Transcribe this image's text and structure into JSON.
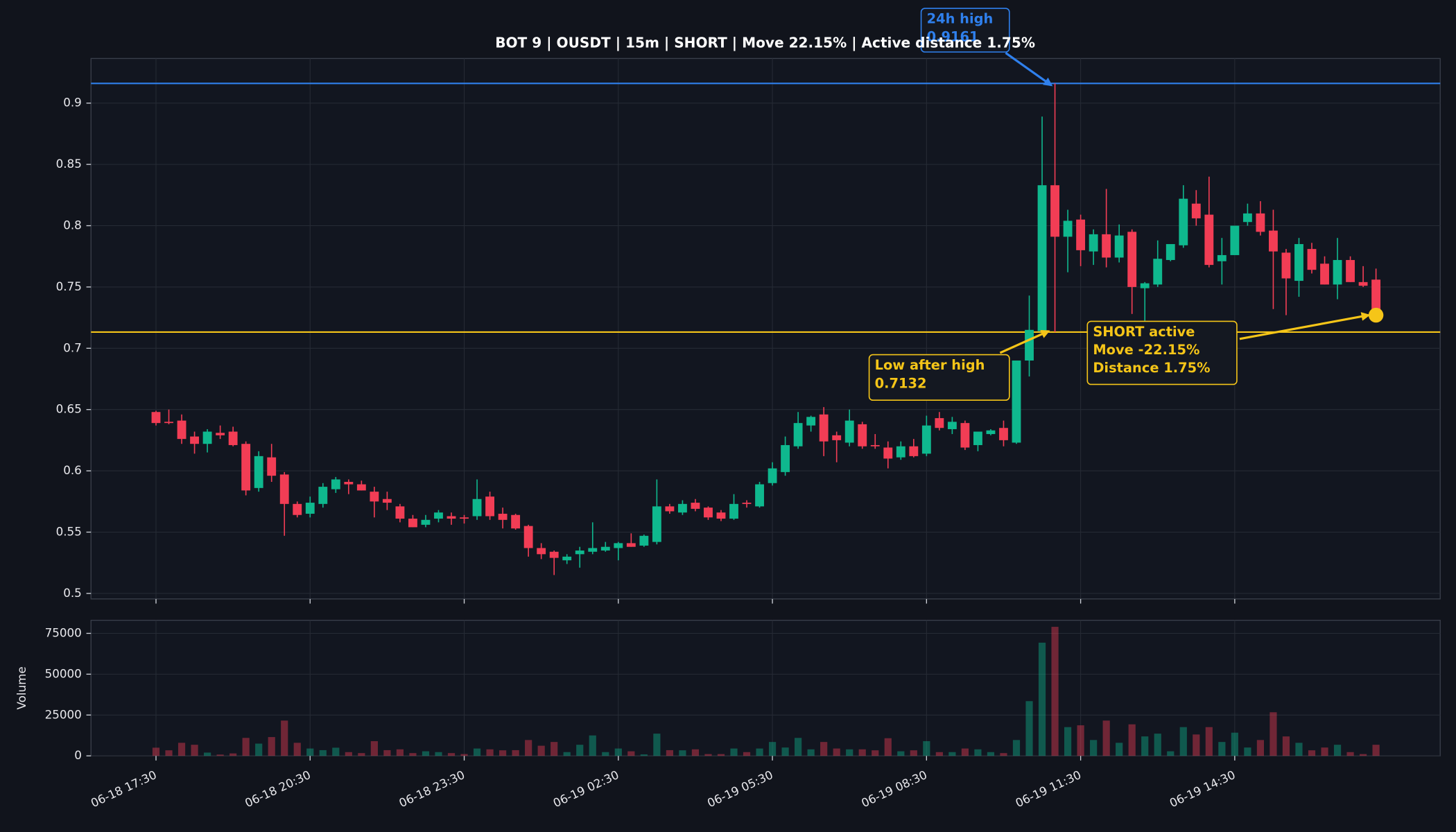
{
  "chart_data": {
    "type": "candlestick",
    "title": "BOT 9 | OUSDT | 15m | SHORT | Move 22.15% | Active distance 1.75%",
    "categories": [
      "06-18 17:30",
      null,
      null,
      null,
      null,
      null,
      null,
      null,
      null,
      null,
      null,
      null,
      "06-18 20:30",
      null,
      null,
      null,
      null,
      null,
      null,
      null,
      null,
      null,
      null,
      null,
      "06-18 23:30",
      null,
      null,
      null,
      null,
      null,
      null,
      null,
      null,
      null,
      null,
      null,
      "06-19 02:30",
      null,
      null,
      null,
      null,
      null,
      null,
      null,
      null,
      null,
      null,
      null,
      "06-19 05:30",
      null,
      null,
      null,
      null,
      null,
      null,
      null,
      null,
      null,
      null,
      null,
      "06-19 08:30",
      null,
      null,
      null,
      null,
      null,
      null,
      null,
      null,
      null,
      null,
      null,
      "06-19 11:30",
      null,
      null,
      null,
      null,
      null,
      null,
      null,
      null,
      null,
      null,
      null,
      "06-19 14:30",
      null,
      null,
      null,
      null,
      null,
      null,
      null,
      null,
      null,
      null,
      null
    ],
    "open": [
      0.648,
      0.64,
      0.641,
      0.628,
      0.622,
      0.631,
      0.632,
      0.622,
      0.586,
      0.611,
      0.597,
      0.573,
      0.565,
      0.573,
      0.585,
      0.591,
      0.589,
      0.583,
      0.577,
      0.571,
      0.561,
      0.556,
      0.561,
      0.563,
      0.562,
      0.563,
      0.579,
      0.565,
      0.564,
      0.555,
      0.537,
      0.534,
      0.527,
      0.532,
      0.534,
      0.535,
      0.537,
      0.541,
      0.539,
      0.542,
      0.571,
      0.566,
      0.574,
      0.57,
      0.566,
      0.561,
      0.574,
      0.571,
      0.59,
      0.599,
      0.62,
      0.637,
      0.646,
      0.629,
      0.623,
      0.638,
      0.621,
      0.619,
      0.611,
      0.62,
      0.614,
      0.643,
      0.634,
      0.639,
      0.621,
      0.63,
      0.635,
      0.623,
      0.69,
      0.714,
      0.833,
      0.791,
      0.805,
      0.779,
      0.793,
      0.774,
      0.795,
      0.749,
      0.752,
      0.772,
      0.784,
      0.818,
      0.809,
      0.771,
      0.776,
      0.803,
      0.81,
      0.796,
      0.778,
      0.755,
      0.781,
      0.769,
      0.752,
      0.772,
      0.754,
      0.756
    ],
    "high": [
      0.649,
      0.65,
      0.646,
      0.632,
      0.634,
      0.637,
      0.636,
      0.624,
      0.616,
      0.622,
      0.599,
      0.575,
      0.579,
      0.59,
      0.595,
      0.593,
      0.592,
      0.587,
      0.583,
      0.573,
      0.564,
      0.564,
      0.568,
      0.566,
      0.564,
      0.593,
      0.583,
      0.57,
      0.565,
      0.556,
      0.541,
      0.535,
      0.532,
      0.538,
      0.558,
      0.542,
      0.542,
      0.549,
      0.548,
      0.593,
      0.573,
      0.576,
      0.577,
      0.571,
      0.568,
      0.581,
      0.576,
      0.591,
      0.607,
      0.628,
      0.648,
      0.645,
      0.652,
      0.632,
      0.65,
      0.64,
      0.63,
      0.624,
      0.624,
      0.626,
      0.645,
      0.648,
      0.644,
      0.641,
      0.631,
      0.634,
      0.641,
      0.69,
      0.743,
      0.889,
      0.9161,
      0.813,
      0.809,
      0.797,
      0.83,
      0.801,
      0.797,
      0.754,
      0.788,
      0.782,
      0.833,
      0.829,
      0.84,
      0.79,
      0.8,
      0.818,
      0.82,
      0.813,
      0.781,
      0.79,
      0.786,
      0.775,
      0.79,
      0.775,
      0.767,
      0.765
    ],
    "low": [
      0.637,
      0.638,
      0.622,
      0.614,
      0.615,
      0.626,
      0.62,
      0.58,
      0.583,
      0.591,
      0.547,
      0.562,
      0.562,
      0.57,
      0.582,
      0.581,
      0.584,
      0.562,
      0.568,
      0.558,
      0.554,
      0.554,
      0.558,
      0.556,
      0.557,
      0.56,
      0.56,
      0.553,
      0.552,
      0.53,
      0.528,
      0.515,
      0.524,
      0.521,
      0.532,
      0.534,
      0.527,
      0.538,
      0.538,
      0.54,
      0.565,
      0.564,
      0.567,
      0.56,
      0.559,
      0.56,
      0.57,
      0.57,
      0.588,
      0.596,
      0.618,
      0.632,
      0.612,
      0.607,
      0.62,
      0.618,
      0.618,
      0.602,
      0.609,
      0.611,
      0.612,
      0.633,
      0.63,
      0.617,
      0.616,
      0.629,
      0.62,
      0.622,
      0.677,
      0.713,
      0.7132,
      0.762,
      0.767,
      0.768,
      0.766,
      0.77,
      0.728,
      0.722,
      0.75,
      0.771,
      0.782,
      0.8,
      0.766,
      0.752,
      0.776,
      0.8,
      0.792,
      0.732,
      0.727,
      0.742,
      0.761,
      0.752,
      0.74,
      0.754,
      0.75,
      0.727
    ],
    "close": [
      0.639,
      0.639,
      0.626,
      0.622,
      0.632,
      0.629,
      0.621,
      0.584,
      0.612,
      0.596,
      0.573,
      0.564,
      0.574,
      0.587,
      0.593,
      0.589,
      0.584,
      0.575,
      0.574,
      0.561,
      0.554,
      0.56,
      0.566,
      0.561,
      0.561,
      0.577,
      0.563,
      0.56,
      0.553,
      0.537,
      0.532,
      0.529,
      0.53,
      0.535,
      0.537,
      0.538,
      0.541,
      0.538,
      0.547,
      0.571,
      0.567,
      0.573,
      0.569,
      0.562,
      0.561,
      0.573,
      0.573,
      0.589,
      0.602,
      0.621,
      0.639,
      0.644,
      0.624,
      0.625,
      0.641,
      0.62,
      0.62,
      0.61,
      0.62,
      0.612,
      0.637,
      0.635,
      0.64,
      0.619,
      0.632,
      0.633,
      0.625,
      0.69,
      0.715,
      0.833,
      0.791,
      0.804,
      0.78,
      0.793,
      0.774,
      0.792,
      0.75,
      0.753,
      0.773,
      0.785,
      0.822,
      0.806,
      0.768,
      0.776,
      0.8,
      0.81,
      0.795,
      0.779,
      0.757,
      0.785,
      0.764,
      0.752,
      0.772,
      0.754,
      0.751,
      0.727
    ],
    "colors": {
      "up": "#0fb88e",
      "down": "#f23d55"
    },
    "ylim": [
      0.4955,
      0.9364
    ],
    "yticks": [
      0.5,
      0.55,
      0.6,
      0.65,
      0.7,
      0.75,
      0.8,
      0.85,
      0.9
    ],
    "grid": true,
    "annotations": [
      {
        "lines": [
          "24h high"
        ],
        "value": 0.9161,
        "color": "#2f80ed"
      },
      {
        "lines": [
          "Low after high"
        ],
        "value": 0.7132,
        "color": "#f5c518"
      },
      {
        "lines": [
          "SHORT active",
          "Move -22.15%",
          "Distance 1.75%"
        ],
        "color": "#f5c518"
      }
    ],
    "volume": {
      "ylabel": "Volume",
      "values": [
        5000,
        3400,
        8000,
        6800,
        2000,
        800,
        1500,
        11000,
        7500,
        11500,
        21600,
        8000,
        4500,
        3500,
        5000,
        2300,
        1700,
        9000,
        3500,
        4000,
        1700,
        2800,
        2300,
        1700,
        1100,
        4500,
        4000,
        3400,
        3500,
        9700,
        6200,
        8500,
        2300,
        6800,
        12500,
        2300,
        4500,
        2800,
        900,
        13600,
        3500,
        3400,
        4000,
        1100,
        1100,
        4500,
        2300,
        4500,
        8500,
        5100,
        11000,
        4000,
        8500,
        4500,
        4000,
        4000,
        3400,
        10800,
        2800,
        3400,
        9000,
        2300,
        2300,
        4500,
        4000,
        2300,
        1700,
        9700,
        33500,
        69300,
        79000,
        17600,
        18700,
        9700,
        21600,
        8000,
        19300,
        11900,
        13600,
        2800,
        17600,
        13100,
        17600,
        8500,
        14200,
        5100,
        9700,
        26700,
        11900,
        8000,
        3400,
        5100,
        6800,
        2300,
        1100,
        6800
      ],
      "ylim": [
        0,
        83000
      ],
      "yticks": [
        0,
        25000,
        50000,
        75000
      ]
    }
  }
}
